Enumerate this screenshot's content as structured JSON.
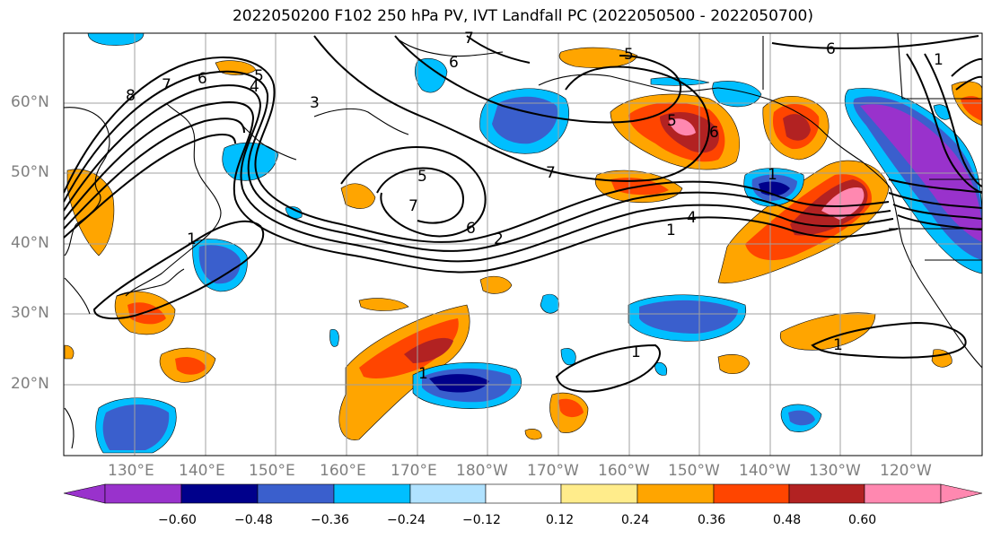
{
  "title": "2022050200 F102 250 hPa PV, IVT Landfall PC (2022050500 - 2022050700)",
  "lat_labels": [
    "60°N",
    "50°N",
    "40°N",
    "30°N",
    "20°N"
  ],
  "lon_labels": [
    "130°E",
    "140°E",
    "150°E",
    "160°E",
    "170°E",
    "180°W",
    "170°W",
    "160°W",
    "150°W",
    "140°W",
    "130°W",
    "120°W"
  ],
  "colorbar": {
    "ticks": [
      "−0.60",
      "−0.48",
      "−0.36",
      "−0.24",
      "−0.12",
      "0.12",
      "0.24",
      "0.36",
      "0.48",
      "0.60"
    ],
    "colors": [
      "#9932cc",
      "#00008b",
      "#3a5fcd",
      "#00bfff",
      "#b0e2ff",
      "#ffffff",
      "#ffec8b",
      "#ffa500",
      "#ff4500",
      "#b22222",
      "#ff88b0"
    ]
  },
  "contour_labels": [
    "8",
    "7",
    "6",
    "5",
    "4",
    "3",
    "7",
    "6",
    "5",
    "6",
    "5",
    "7",
    "7",
    "5",
    "6",
    "2",
    "1",
    "4",
    "1",
    "6",
    "1",
    "1",
    "1",
    "1",
    "1",
    "6"
  ]
}
